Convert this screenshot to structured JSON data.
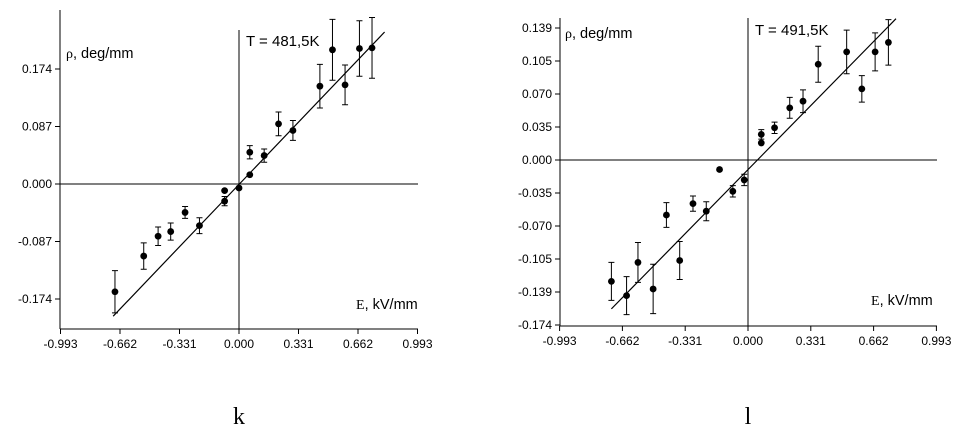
{
  "chart_data": [
    {
      "type": "scatter",
      "panel_label": "k",
      "annotation": "T = 481,5K",
      "ylabel_symbol": "ρ",
      "ylabel": ", deg/mm",
      "xlabel_symbol": "E",
      "xlabel": ", kV/mm",
      "xticks": [
        "-0.993",
        "-0.662",
        "-0.331",
        "0.000",
        "0.331",
        "0.662",
        "0.993"
      ],
      "yticks": [
        "-0.174",
        "-0.087",
        "0.000",
        "0.087",
        "0.174"
      ],
      "xlim": [
        -0.993,
        0.993
      ],
      "ylim": [
        -0.218,
        0.218
      ],
      "fit_line": {
        "x": [
          -0.7,
          0.81
        ],
        "y": [
          -0.2,
          0.23
        ]
      },
      "points": [
        {
          "x": -0.69,
          "y": -0.163,
          "err": 0.032
        },
        {
          "x": -0.53,
          "y": -0.109,
          "err": 0.02
        },
        {
          "x": -0.45,
          "y": -0.079,
          "err": 0.014
        },
        {
          "x": -0.38,
          "y": -0.072,
          "err": 0.013
        },
        {
          "x": -0.3,
          "y": -0.043,
          "err": 0.009
        },
        {
          "x": -0.22,
          "y": -0.063,
          "err": 0.012
        },
        {
          "x": -0.08,
          "y": -0.026,
          "err": 0.007
        },
        {
          "x": -0.08,
          "y": -0.01,
          "err": 0.0
        },
        {
          "x": 0.0,
          "y": -0.006,
          "err": 0.0
        },
        {
          "x": 0.06,
          "y": 0.048,
          "err": 0.01
        },
        {
          "x": 0.06,
          "y": 0.014,
          "err": 0.0
        },
        {
          "x": 0.14,
          "y": 0.043,
          "err": 0.01
        },
        {
          "x": 0.22,
          "y": 0.091,
          "err": 0.018
        },
        {
          "x": 0.3,
          "y": 0.081,
          "err": 0.015
        },
        {
          "x": 0.45,
          "y": 0.148,
          "err": 0.033
        },
        {
          "x": 0.52,
          "y": 0.203,
          "err": 0.046
        },
        {
          "x": 0.59,
          "y": 0.15,
          "err": 0.03
        },
        {
          "x": 0.67,
          "y": 0.205,
          "err": 0.042
        },
        {
          "x": 0.74,
          "y": 0.206,
          "err": 0.046
        }
      ]
    },
    {
      "type": "scatter",
      "panel_label": "l",
      "annotation": "T = 491,5K",
      "ylabel_symbol": "ρ",
      "ylabel": ", deg/mm",
      "xlabel_symbol": "E",
      "xlabel": ", kV/mm",
      "xticks": [
        "-0.993",
        "-0.662",
        "-0.331",
        "0.000",
        "0.331",
        "0.662",
        "0.993"
      ],
      "yticks": [
        "-0.174",
        "-0.139",
        "-0.105",
        "-0.070",
        "-0.035",
        "0.000",
        "0.035",
        "0.070",
        "0.105",
        "0.139"
      ],
      "xlim": [
        -0.993,
        0.993
      ],
      "ylim": [
        -0.174,
        0.154
      ],
      "fit_line": {
        "x": [
          -0.72,
          0.78
        ],
        "y": [
          -0.157,
          0.149
        ]
      },
      "points": [
        {
          "x": -0.72,
          "y": -0.128,
          "err": 0.02
        },
        {
          "x": -0.64,
          "y": -0.143,
          "err": 0.02
        },
        {
          "x": -0.58,
          "y": -0.108,
          "err": 0.021
        },
        {
          "x": -0.5,
          "y": -0.136,
          "err": 0.026
        },
        {
          "x": -0.43,
          "y": -0.058,
          "err": 0.013
        },
        {
          "x": -0.36,
          "y": -0.106,
          "err": 0.02
        },
        {
          "x": -0.29,
          "y": -0.046,
          "err": 0.008
        },
        {
          "x": -0.22,
          "y": -0.054,
          "err": 0.01
        },
        {
          "x": -0.15,
          "y": -0.01,
          "err": 0.0
        },
        {
          "x": -0.08,
          "y": -0.033,
          "err": 0.006
        },
        {
          "x": -0.02,
          "y": -0.021,
          "err": 0.006
        },
        {
          "x": 0.07,
          "y": 0.027,
          "err": 0.005
        },
        {
          "x": 0.07,
          "y": 0.018,
          "err": 0.0
        },
        {
          "x": 0.14,
          "y": 0.034,
          "err": 0.006
        },
        {
          "x": 0.22,
          "y": 0.055,
          "err": 0.011
        },
        {
          "x": 0.29,
          "y": 0.062,
          "err": 0.012
        },
        {
          "x": 0.37,
          "y": 0.101,
          "err": 0.019
        },
        {
          "x": 0.52,
          "y": 0.114,
          "err": 0.023
        },
        {
          "x": 0.6,
          "y": 0.075,
          "err": 0.014
        },
        {
          "x": 0.67,
          "y": 0.114,
          "err": 0.02
        },
        {
          "x": 0.74,
          "y": 0.124,
          "err": 0.024
        }
      ]
    }
  ]
}
